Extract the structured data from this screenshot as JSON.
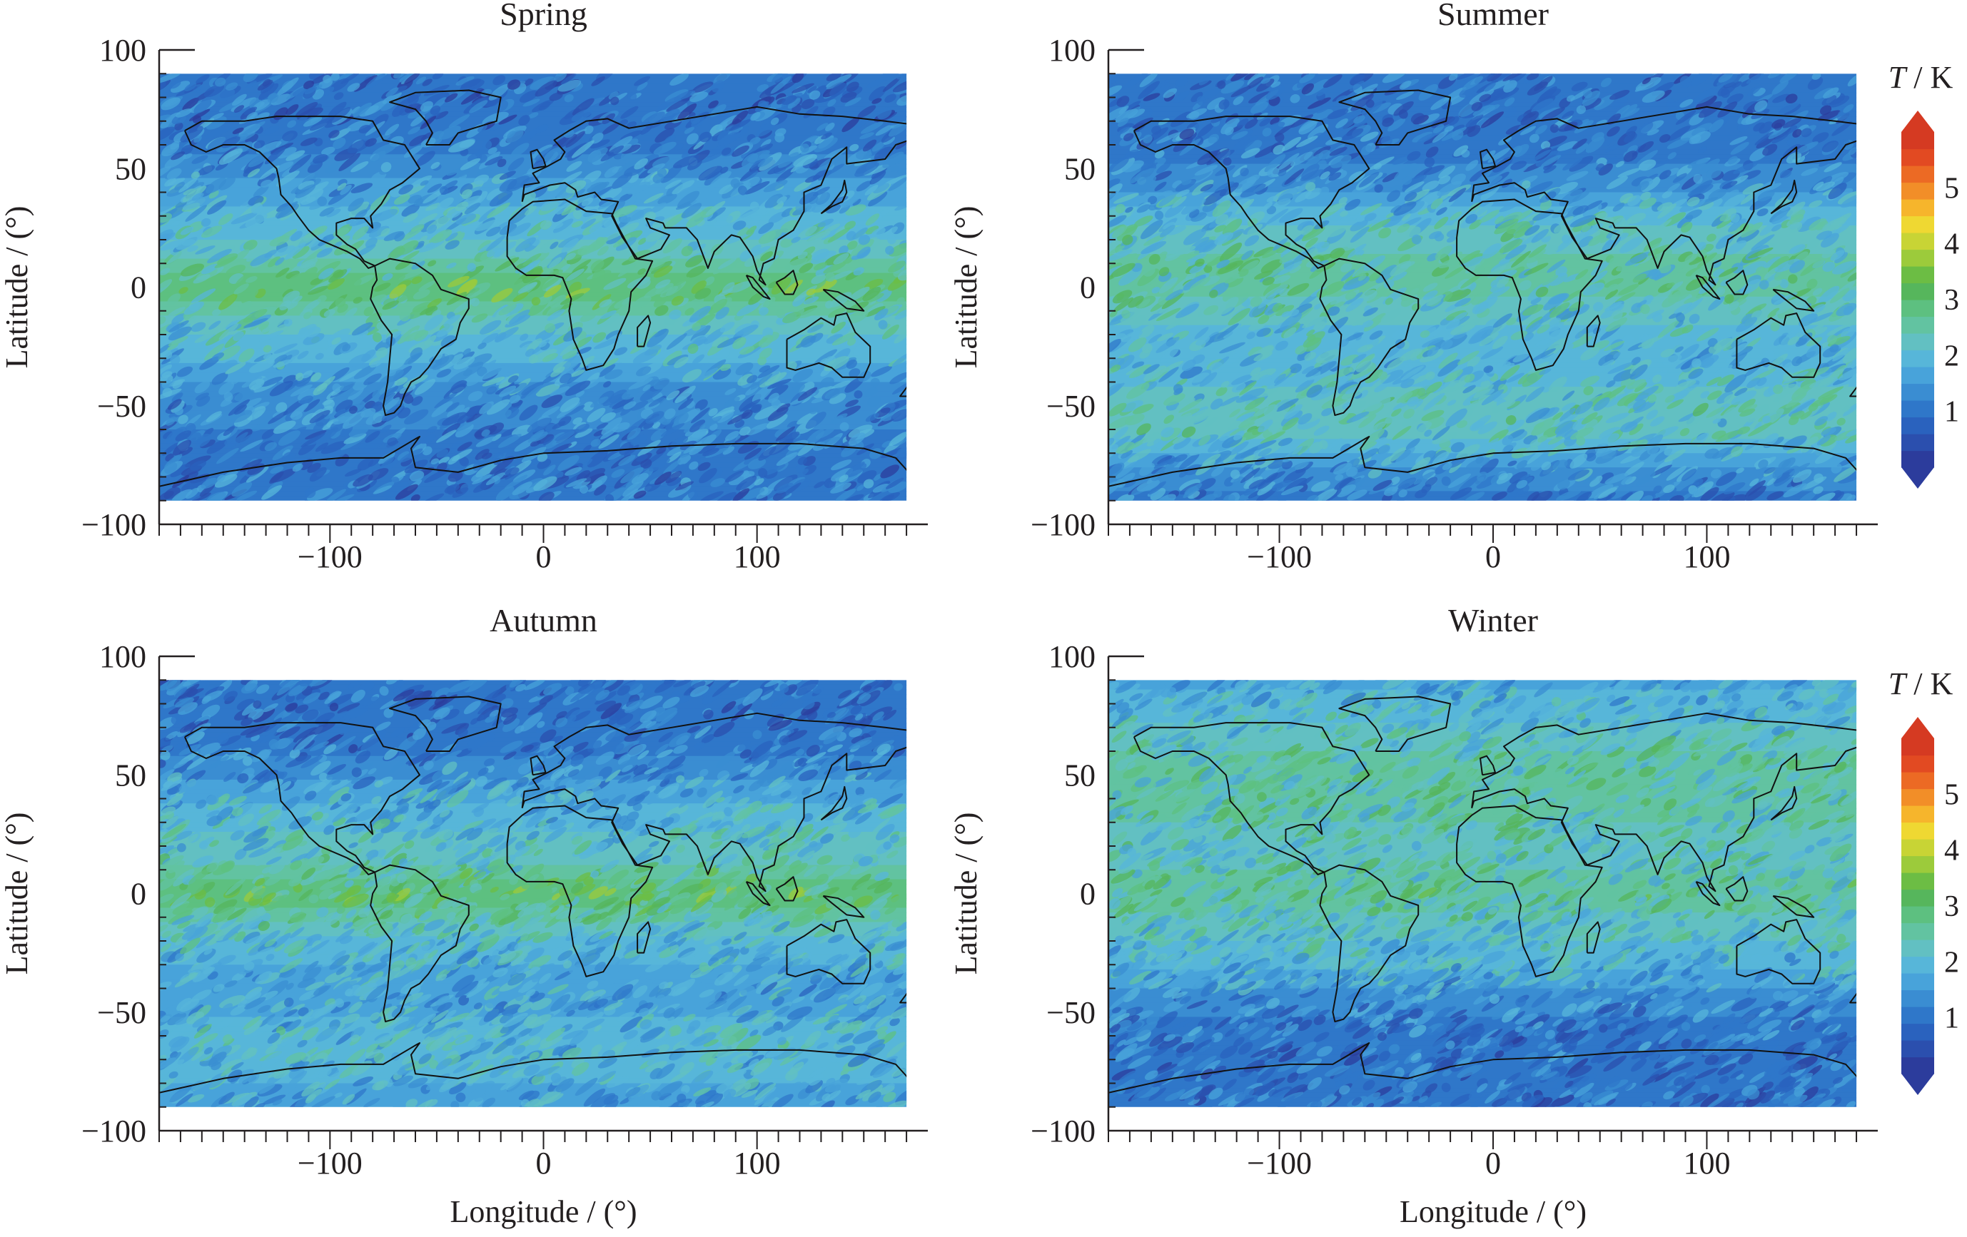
{
  "figure": {
    "colorbar": {
      "title_italic": "T",
      "title_rest": " / K",
      "tick_labels": [
        "1",
        "2",
        "3",
        "4",
        "5"
      ],
      "range": [
        0,
        6
      ],
      "extend": "both",
      "colors": [
        "#2c3c9c",
        "#2b4fae",
        "#2a62be",
        "#2f77c9",
        "#3a8dd2",
        "#48a3da",
        "#57b6d9",
        "#62c0c2",
        "#62c3a1",
        "#5dc080",
        "#56b65c",
        "#6cbd44",
        "#9ccb3b",
        "#c8d435",
        "#efd832",
        "#f6b52c",
        "#f28e28",
        "#ec6a24",
        "#e24a22",
        "#d53a22"
      ]
    }
  },
  "chart_data": [
    {
      "type": "heatmap",
      "title": "Spring",
      "xlabel": "",
      "ylabel": "Latitude / (°)",
      "xlim": [
        -180,
        180
      ],
      "ylim": [
        -100,
        100
      ],
      "xticks": [
        -100,
        0,
        100
      ],
      "xtick_labels": [
        "−100",
        "0",
        "100"
      ],
      "yticks": [
        100,
        50,
        0,
        -50,
        -100
      ],
      "ytick_labels": [
        "100",
        "50",
        "0",
        "−50",
        "−100"
      ],
      "colorbar": false,
      "zonal_mean_T": {
        "latitude": [
          90,
          75,
          60,
          45,
          30,
          15,
          0,
          -15,
          -30,
          -45,
          -60,
          -75,
          -90
        ],
        "T": [
          1.0,
          1.0,
          1.1,
          1.5,
          1.9,
          2.2,
          3.0,
          2.2,
          1.9,
          1.3,
          1.2,
          1.1,
          1.0
        ]
      }
    },
    {
      "type": "heatmap",
      "title": "Summer",
      "xlabel": "",
      "ylabel": "Latitude / (°)",
      "xlim": [
        -180,
        180
      ],
      "ylim": [
        -100,
        100
      ],
      "xticks": [
        -100,
        0,
        100
      ],
      "xtick_labels": [
        "−100",
        "0",
        "100"
      ],
      "yticks": [
        100,
        50,
        0,
        -50,
        -100
      ],
      "ytick_labels": [
        "100",
        "50",
        "0",
        "−50",
        "−100"
      ],
      "colorbar": true,
      "zonal_mean_T": {
        "latitude": [
          90,
          75,
          60,
          45,
          30,
          15,
          0,
          -15,
          -30,
          -45,
          -60,
          -75,
          -90
        ],
        "T": [
          1.0,
          1.0,
          1.1,
          1.3,
          2.0,
          2.4,
          2.5,
          2.1,
          1.8,
          2.2,
          2.3,
          1.5,
          1.1
        ]
      }
    },
    {
      "type": "heatmap",
      "title": "Autumn",
      "xlabel": "Longitude / (°)",
      "ylabel": "Latitude / (°)",
      "xlim": [
        -180,
        180
      ],
      "ylim": [
        -100,
        100
      ],
      "xticks": [
        -100,
        0,
        100
      ],
      "xtick_labels": [
        "−100",
        "0",
        "100"
      ],
      "yticks": [
        100,
        50,
        0,
        -50,
        -100
      ],
      "ytick_labels": [
        "100",
        "50",
        "0",
        "−50",
        "−100"
      ],
      "colorbar": false,
      "zonal_mean_T": {
        "latitude": [
          90,
          75,
          60,
          45,
          30,
          15,
          0,
          -15,
          -30,
          -45,
          -60,
          -75,
          -90
        ],
        "T": [
          1.0,
          1.0,
          1.1,
          1.6,
          2.0,
          2.3,
          3.0,
          2.2,
          1.8,
          1.6,
          2.0,
          1.9,
          1.6
        ]
      }
    },
    {
      "type": "heatmap",
      "title": "Winter",
      "xlabel": "Longitude / (°)",
      "ylabel": "Latitude / (°)",
      "xlim": [
        -180,
        180
      ],
      "ylim": [
        -100,
        100
      ],
      "xticks": [
        -100,
        0,
        100
      ],
      "xtick_labels": [
        "−100",
        "0",
        "100"
      ],
      "yticks": [
        100,
        50,
        0,
        -50,
        -100
      ],
      "ytick_labels": [
        "100",
        "50",
        "0",
        "−50",
        "−100"
      ],
      "colorbar": true,
      "zonal_mean_T": {
        "latitude": [
          90,
          75,
          60,
          45,
          30,
          15,
          0,
          -15,
          -30,
          -45,
          -60,
          -75,
          -90
        ],
        "T": [
          1.7,
          2.0,
          2.4,
          2.5,
          2.4,
          2.3,
          2.6,
          2.2,
          1.9,
          1.3,
          1.1,
          1.0,
          1.0
        ]
      }
    }
  ]
}
